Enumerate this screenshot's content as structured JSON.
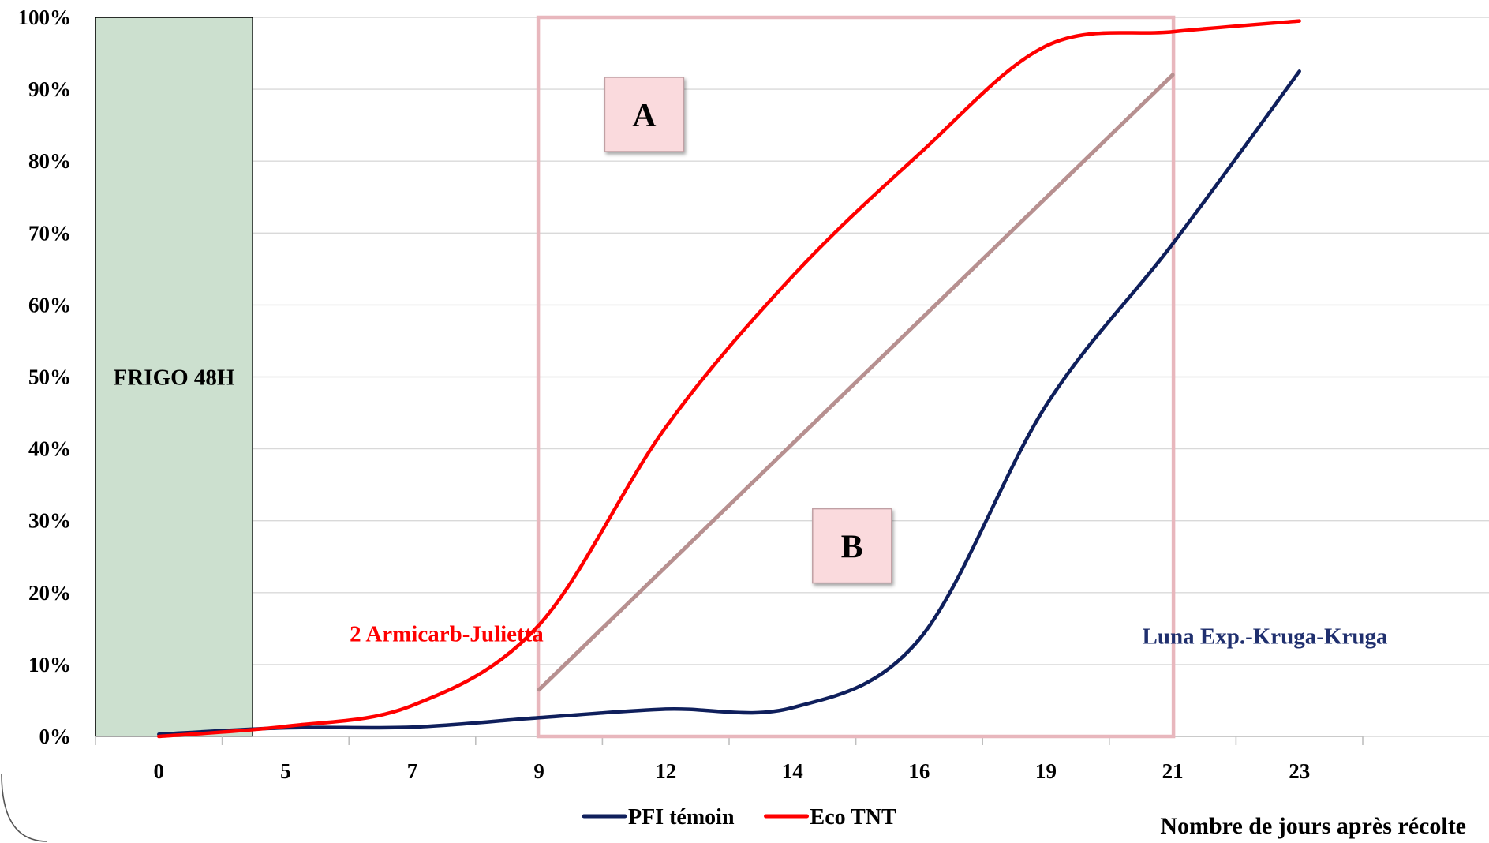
{
  "chart_data": {
    "type": "line",
    "xlabel": "Nombre de jours après récolte",
    "ylabel": "",
    "ylim": [
      0,
      100
    ],
    "y_tick_labels": [
      "0%",
      "10%",
      "20%",
      "30%",
      "40%",
      "50%",
      "60%",
      "70%",
      "80%",
      "90%",
      "100%"
    ],
    "categories": [
      "0",
      "5",
      "7",
      "9",
      "12",
      "14",
      "16",
      "19",
      "21",
      "23"
    ],
    "grid": "horizontal",
    "legend_position": "bottom",
    "series": [
      {
        "name": "PFI témoin",
        "color": "#0f1f5c",
        "values": [
          0.3,
          1.2,
          1.3,
          2.6,
          3.8,
          4.0,
          13.5,
          46.0,
          68.5,
          92.5
        ]
      },
      {
        "name": "Eco TNT",
        "color": "#ff0000",
        "values": [
          0.0,
          1.4,
          4.3,
          15.5,
          43.0,
          64.0,
          81.0,
          96.0,
          98.0,
          99.5
        ]
      }
    ],
    "trend_line": {
      "color": "#b79090",
      "start": {
        "x": "9",
        "y": 6.5
      },
      "end": {
        "x": "21",
        "y": 92.0
      }
    },
    "annotations": {
      "storage_label": "FRIGO 48H",
      "storage_color": "#cce0cf",
      "window_box_color": "#e8b7bd",
      "box_a": "A",
      "box_b": "B",
      "box_fill": "#fadadd",
      "treatment_eco": "2 Armicarb-Julietta",
      "treatment_eco_color": "#ff0000",
      "treatment_pfi": "Luna Exp.-Kruga-Kruga",
      "treatment_pfi_color": "#1f2f6e"
    }
  }
}
